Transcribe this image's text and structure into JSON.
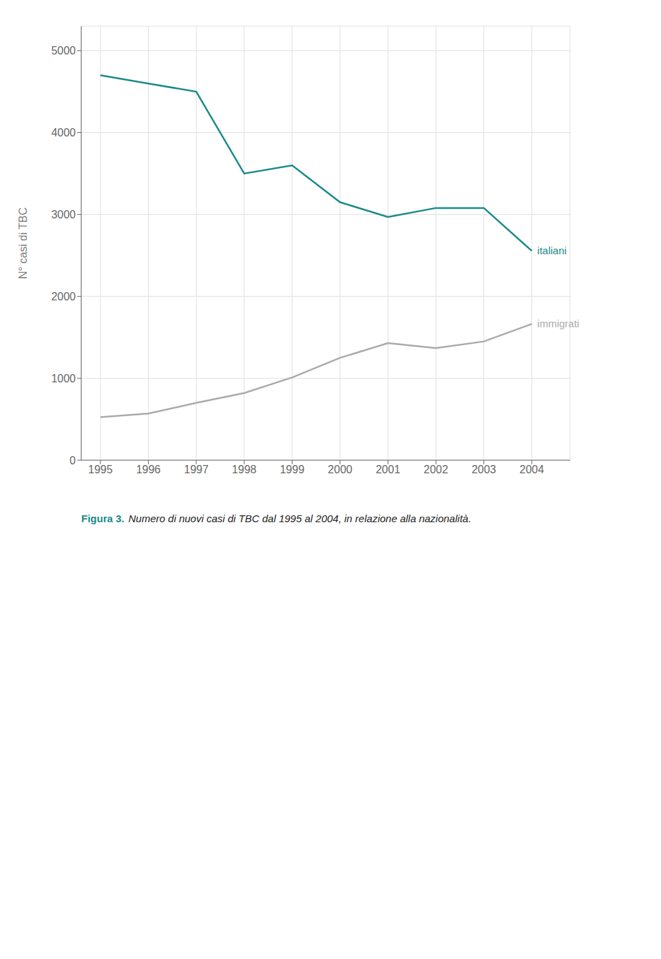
{
  "chart_data": {
    "type": "line",
    "ylabel": "N° casi di TBC",
    "x": [
      1995,
      1996,
      1997,
      1998,
      1999,
      2000,
      2001,
      2002,
      2003,
      2004
    ],
    "series": [
      {
        "name": "italiani",
        "color": "#1a8a8a",
        "values": [
          4700,
          4600,
          4500,
          3500,
          3600,
          3150,
          2970,
          3080,
          3080,
          2556
        ]
      },
      {
        "name": "immigrati",
        "color": "#aaaaaa",
        "values": [
          525,
          570,
          700,
          820,
          1010,
          1250,
          1430,
          1370,
          1450,
          1664
        ]
      }
    ],
    "xlim": [
      1994.6,
      2004.8
    ],
    "xticks": [
      1995,
      1996,
      1997,
      1998,
      1999,
      2000,
      2001,
      2002,
      2003,
      2004
    ],
    "ylim": [
      0,
      5300
    ],
    "yticks": [
      0,
      1000,
      2000,
      3000,
      4000,
      5000
    ],
    "grid": true,
    "annotations": [
      "Figura 3.",
      "Numero di nuovi casi di TBC dal 1995 al 2004, in relazione alla nazionalità."
    ]
  }
}
